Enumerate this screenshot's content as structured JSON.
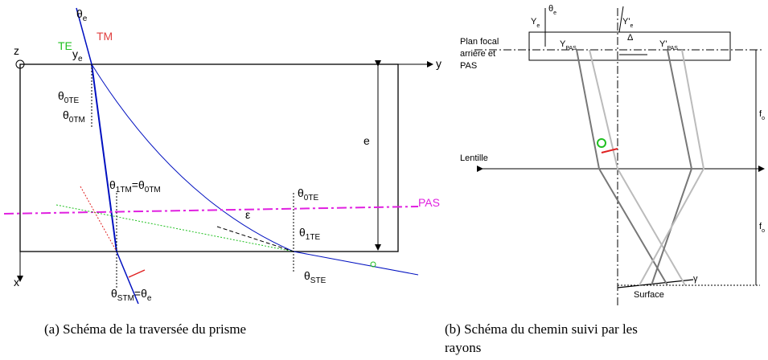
{
  "a": {
    "caption": "(a) Schéma de la traversée du prisme",
    "labels": [
      [
        "θ",
        "e"
      ],
      [
        "TM"
      ],
      [
        "TE"
      ],
      [
        "y",
        "e"
      ],
      [
        "z"
      ],
      [
        "y"
      ],
      [
        "θ",
        "0TE"
      ],
      [
        "θ",
        "0TM"
      ],
      [
        "θ",
        "1TM",
        "=θ",
        "0TM"
      ],
      [
        "e"
      ],
      [
        "PAS"
      ],
      [
        "ε"
      ],
      [
        "θ",
        "0TE"
      ],
      [
        "θ",
        "1TE"
      ],
      [
        "x"
      ],
      [
        "θ",
        "STM",
        "=θ",
        "e"
      ],
      [
        "θ",
        "STE"
      ]
    ]
  },
  "b": {
    "caption": [
      "(b) Schéma du chemin suivi par les",
      "rayons"
    ],
    "labels": [
      [
        "θ",
        "e"
      ],
      [
        "Y",
        "e"
      ],
      [
        "Y'",
        "e"
      ],
      [
        "Y",
        "PAS"
      ],
      [
        "Δ"
      ],
      [
        "Y'",
        "PAS"
      ],
      [
        "Plan focal"
      ],
      [
        "arrière et"
      ],
      [
        "PAS"
      ],
      [
        "Lentille"
      ],
      [
        "f",
        "o"
      ],
      [
        "f",
        "o"
      ],
      [
        "Surface"
      ],
      [
        "γ"
      ]
    ]
  }
}
